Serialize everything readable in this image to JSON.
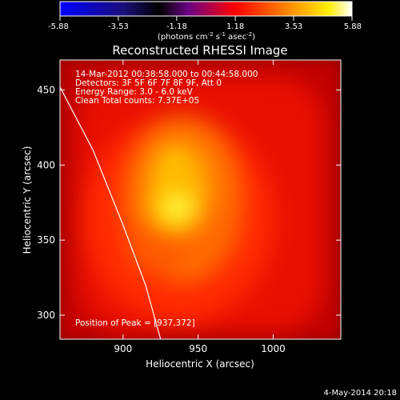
{
  "chart_data": {
    "type": "heatmap",
    "title": "Reconstructed RHESSI Image",
    "xlabel": "Heliocentric X (arcsec)",
    "ylabel": "Heliocentric Y (arcsec)",
    "xlim": [
      858,
      1045
    ],
    "ylim": [
      284,
      470
    ],
    "x_ticks": [
      900,
      950,
      1000
    ],
    "y_ticks": [
      300,
      350,
      400,
      450
    ],
    "colorbar": {
      "range": [
        -5.88,
        5.88
      ],
      "ticks": [
        -5.88,
        -3.53,
        -1.18,
        1.18,
        3.53,
        5.88
      ],
      "tick_labels": [
        "-5.88",
        "-3.53",
        "-1.18",
        "1.18",
        "3.53",
        "5.88"
      ],
      "unit_label_parts": [
        "(photons cm",
        "-2",
        " s",
        "-1",
        " asec",
        "-2",
        ")"
      ],
      "colormap": [
        "#0000ff",
        "#1c0f78",
        "#000000",
        "#6a0085",
        "#ff0000",
        "#ff8800",
        "#ffee00",
        "#ffffff"
      ]
    },
    "info_lines": [
      "14-Mar-2012 00:38:58.000 to 00:44:58.000",
      "Detectors: 3F 5F 6F 7F 8F 9F, Att 0",
      "Energy Range: 3.0 - 6.0 keV",
      "Clean    Total counts: 7.37E+05"
    ],
    "peak_label": "Position of Peak = [937,372]",
    "peak": [
      937,
      372
    ],
    "limb_curve": [
      [
        858,
        452
      ],
      [
        880,
        410
      ],
      [
        900,
        360
      ],
      [
        915,
        320
      ],
      [
        925,
        284
      ]
    ]
  },
  "footer_date": "4-May-2014 20:18"
}
